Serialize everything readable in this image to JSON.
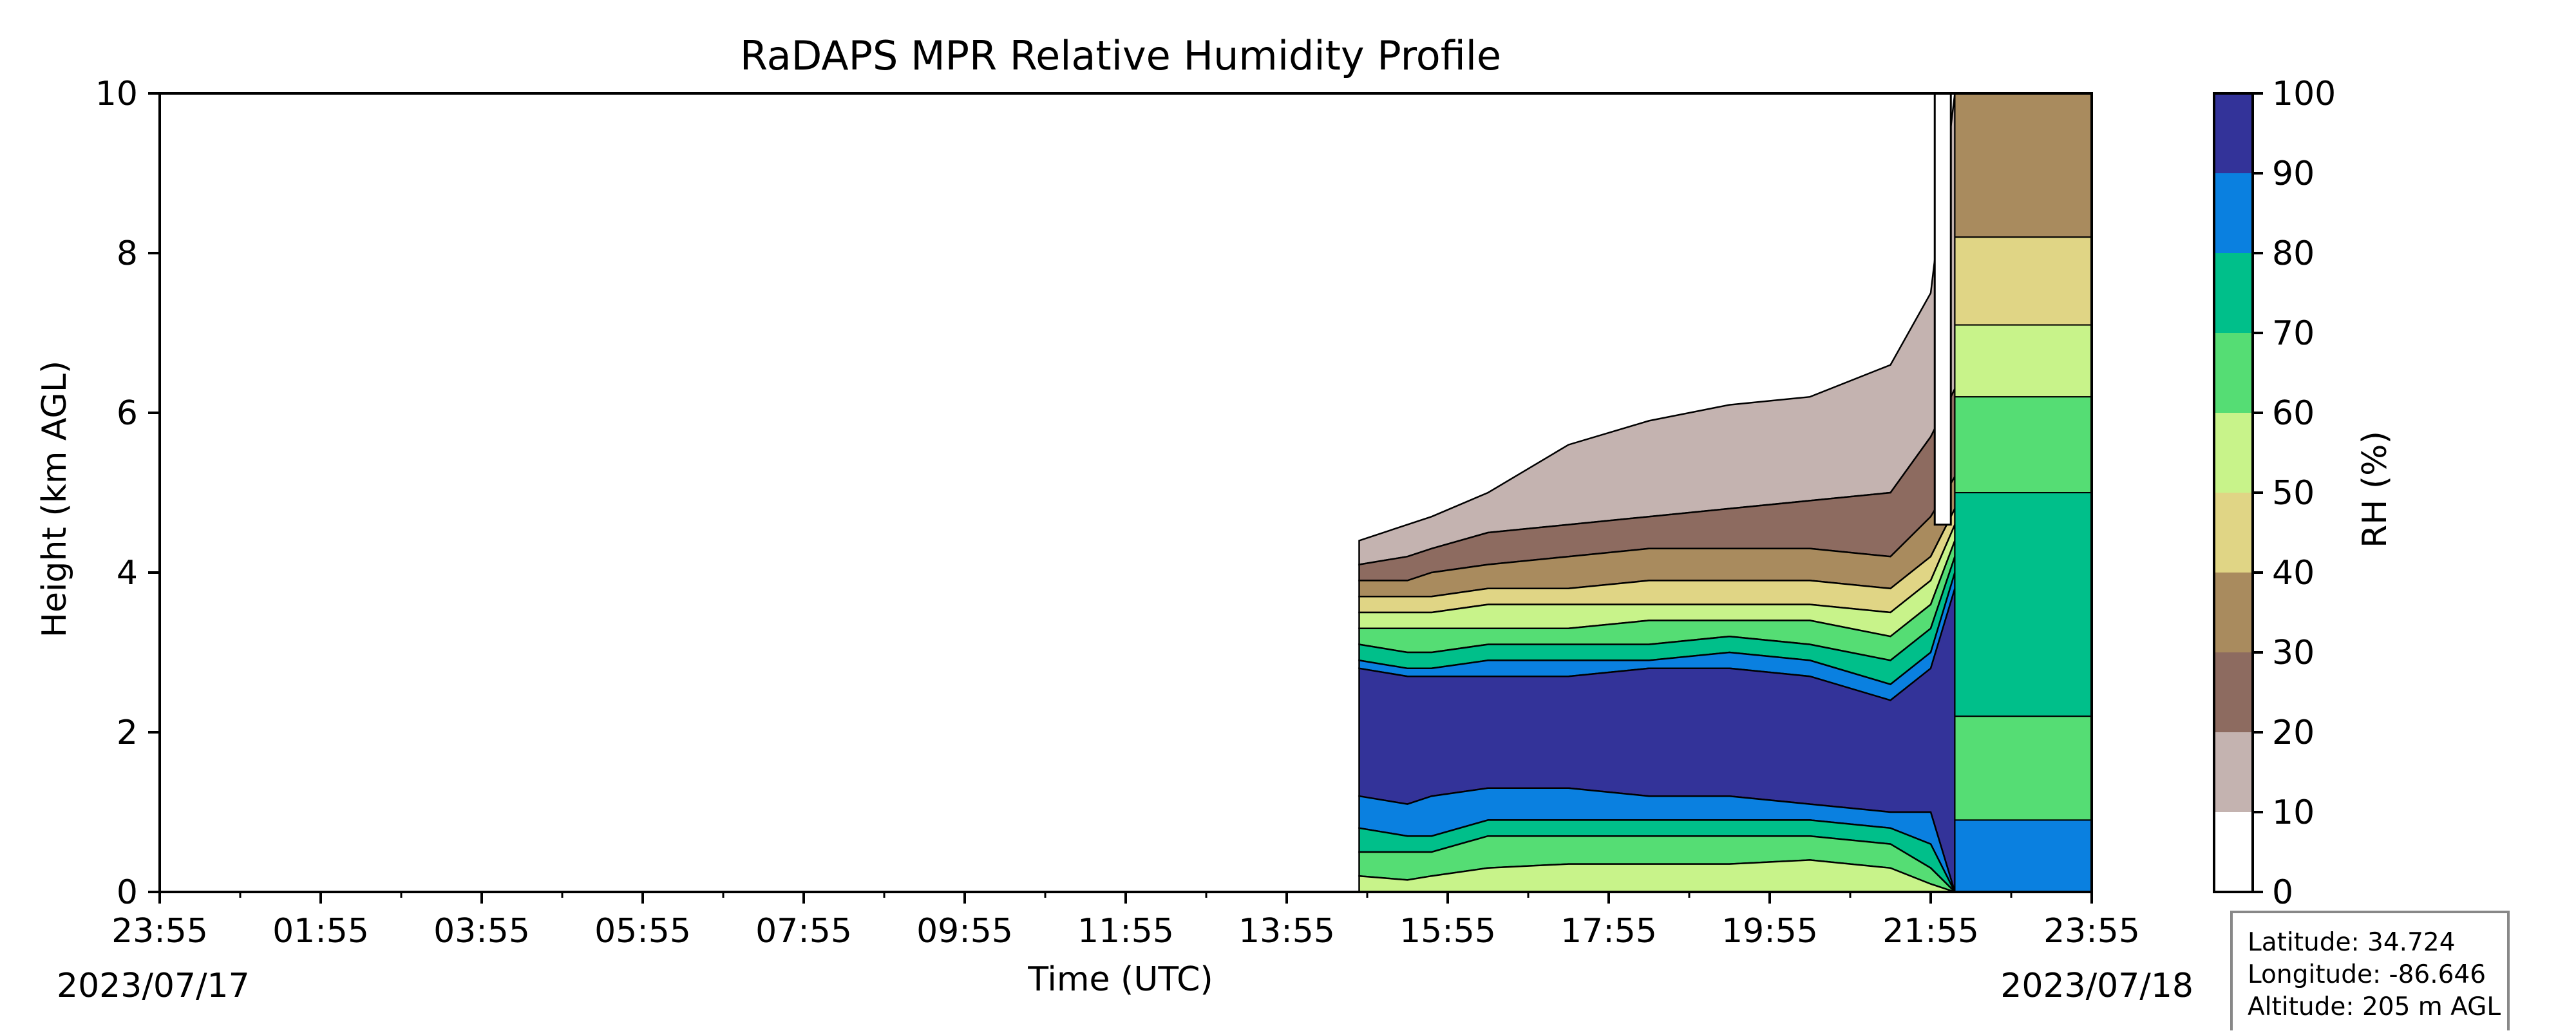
{
  "chart_data": {
    "type": "filled-contour",
    "title": "RaDAPS MPR Relative Humidity Profile",
    "xlabel": "Time (UTC)",
    "ylabel": "Height (km AGL)",
    "x_ticks": [
      "23:55",
      "01:55",
      "03:55",
      "05:55",
      "07:55",
      "09:55",
      "11:55",
      "13:55",
      "15:55",
      "17:55",
      "19:55",
      "21:55",
      "23:55"
    ],
    "x_range_hours": [
      0,
      24
    ],
    "start_date": "2023/07/17",
    "end_date": "2023/07/18",
    "y_ticks": [
      0,
      2,
      4,
      6,
      8,
      10
    ],
    "ylim": [
      0,
      10
    ],
    "colorbar": {
      "label": "RH (%)",
      "ticks": [
        0,
        10,
        20,
        30,
        40,
        50,
        60,
        70,
        80,
        90,
        100
      ],
      "colors": [
        "#ffffff",
        "#c4b3b0",
        "#8d6b60",
        "#a98b5e",
        "#e0d585",
        "#c8f38a",
        "#55dd74",
        "#00bf8a",
        "#0a80e0",
        "#333399"
      ]
    },
    "data_start_hour": 14.9,
    "data_end_hour": 24,
    "level_boundaries_km": {
      "hours": [
        14.9,
        15.5,
        15.8,
        16.5,
        17.5,
        18.5,
        19.5,
        20.5,
        21.5,
        22.0,
        22.3
      ],
      "rh10_top": [
        4.4,
        4.6,
        4.7,
        5.0,
        5.6,
        5.9,
        6.1,
        6.2,
        6.6,
        7.5,
        10.0
      ],
      "rh20_top": [
        4.1,
        4.2,
        4.3,
        4.5,
        4.6,
        4.7,
        4.8,
        4.9,
        5.0,
        5.7,
        6.3
      ],
      "rh30_top": [
        3.9,
        3.9,
        4.0,
        4.1,
        4.2,
        4.3,
        4.3,
        4.3,
        4.2,
        4.7,
        5.2
      ],
      "rh40_top": [
        3.7,
        3.7,
        3.7,
        3.8,
        3.8,
        3.9,
        3.9,
        3.9,
        3.8,
        4.2,
        4.8
      ],
      "rh50_top": [
        3.5,
        3.5,
        3.5,
        3.6,
        3.6,
        3.6,
        3.6,
        3.6,
        3.5,
        3.9,
        4.6
      ],
      "rh60_top": [
        3.3,
        3.3,
        3.3,
        3.3,
        3.3,
        3.4,
        3.4,
        3.4,
        3.2,
        3.6,
        4.4
      ],
      "rh70_top": [
        3.1,
        3.0,
        3.0,
        3.1,
        3.1,
        3.1,
        3.2,
        3.1,
        2.9,
        3.3,
        4.2
      ],
      "rh80_top": [
        2.9,
        2.8,
        2.8,
        2.9,
        2.9,
        2.9,
        3.0,
        2.9,
        2.6,
        3.0,
        4.0
      ],
      "rh90_top": [
        2.8,
        2.7,
        2.7,
        2.7,
        2.7,
        2.8,
        2.8,
        2.7,
        2.4,
        2.8,
        3.8
      ],
      "rh90_bottom": [
        1.2,
        1.1,
        1.2,
        1.3,
        1.3,
        1.2,
        1.2,
        1.1,
        1.0,
        1.0,
        0.0
      ],
      "rh80_bottom": [
        0.8,
        0.7,
        0.7,
        0.9,
        0.9,
        0.9,
        0.9,
        0.9,
        0.8,
        0.6,
        0.0
      ],
      "rh70_bottom": [
        0.5,
        0.5,
        0.5,
        0.7,
        0.7,
        0.7,
        0.7,
        0.7,
        0.6,
        0.3,
        0.0
      ],
      "rh60_bottom": [
        0.2,
        0.15,
        0.2,
        0.3,
        0.35,
        0.35,
        0.35,
        0.4,
        0.3,
        0.1,
        0.0
      ]
    }
  },
  "info_box": {
    "latitude": "Latitude: 34.724",
    "longitude": "Longitude: -86.646",
    "altitude": "Altitude: 205 m AGL"
  }
}
